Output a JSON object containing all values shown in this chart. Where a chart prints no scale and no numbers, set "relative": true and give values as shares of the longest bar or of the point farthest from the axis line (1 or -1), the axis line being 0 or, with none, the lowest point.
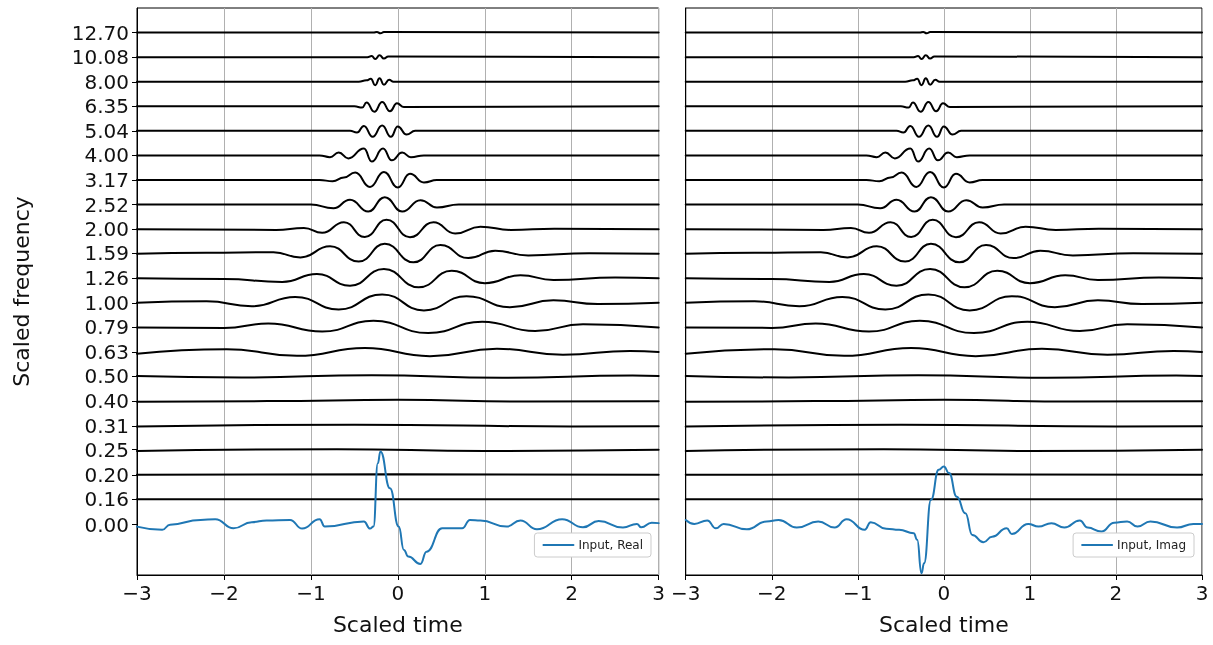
{
  "chart_data": [
    {
      "type": "line",
      "relative": true,
      "xlabel": "Scaled time",
      "ylabel": "Scaled frequency",
      "xlim": [
        -3,
        3
      ],
      "xticks": [
        {
          "value": -3,
          "label": "−3"
        },
        {
          "value": -2,
          "label": "−2"
        },
        {
          "value": -1,
          "label": "−1"
        },
        0,
        1,
        2,
        3
      ],
      "y_categories": [
        "12.70",
        "10.08",
        "8.00",
        "6.35",
        "5.04",
        "4.00",
        "3.17",
        "2.52",
        "2.00",
        "1.59",
        "1.26",
        "1.00",
        "0.79",
        "0.63",
        "0.50",
        "0.40",
        "0.31",
        "0.25",
        "0.20",
        "0.16",
        "0.00"
      ],
      "grid": "x",
      "legend": "bottom right",
      "series": [
        {
          "name": "Input, Real",
          "color": "#1f77b4",
          "x": [
            -3,
            -2.71,
            -2.62,
            -2.27,
            -2.1,
            -1.89,
            -1.68,
            -1.51,
            -1.24,
            -1.1,
            -0.9,
            -0.84,
            -0.39,
            -0.32,
            -0.28,
            -0.23,
            -0.2,
            -0.09,
            0.01,
            0.07,
            0.12,
            0.26,
            0.33,
            0.51,
            0.74,
            0.83,
            0.95,
            1.25,
            1.41,
            1.6,
            1.89,
            2.13,
            2.31,
            2.59,
            2.75,
            2.8,
            2.92,
            3
          ],
          "values": [
            0.0891,
            0.0832,
            0.0927,
            0.1013,
            0.1027,
            0.086,
            0.0973,
            0.1004,
            0.1013,
            0.0855,
            0.1027,
            0.0891,
            0.0986,
            0.0855,
            0.0891,
            0.2058,
            0.2275,
            0.1597,
            0.0891,
            0.0462,
            0.0339,
            0.0204,
            0.043,
            0.086,
            0.086,
            0.1013,
            0.1004,
            0.0891,
            0.1004,
            0.0841,
            0.1027,
            0.0878,
            0.0995,
            0.0873,
            0.0941,
            0.0878,
            0.0964,
            0.0955
          ]
        },
        {
          "color": "#000000",
          "x": [
            -3,
            3
          ],
          "values": [
            0.1393,
            0.1393
          ]
        },
        {
          "color": "#000000",
          "x": [
            -3,
            0,
            3
          ],
          "values": [
            0.1845,
            0.1854,
            0.1845
          ]
        },
        {
          "color": "#000000",
          "x": [
            -3,
            -0.7,
            1,
            3
          ],
          "values": [
            0.2284,
            0.2316,
            0.2284,
            0.2307
          ]
        },
        {
          "color": "#000000",
          "x": [
            -3,
            -0.5,
            2,
            3
          ],
          "values": [
            0.2732,
            0.2768,
            0.2736,
            0.2741
          ]
        },
        {
          "color": "#000000",
          "x": [
            -3,
            -1.5,
            0,
            1.5,
            3
          ],
          "values": [
            0.3188,
            0.3202,
            0.3225,
            0.3193,
            0.3197
          ]
        },
        {
          "color": "#000000",
          "x": [
            -3,
            -1.8,
            -0.3,
            1.2,
            2.7,
            3
          ],
          "values": [
            0.3664,
            0.3637,
            0.3678,
            0.3632,
            0.3673,
            0.3664
          ]
        },
        {
          "color": "#000000",
          "x": [
            -3,
            -1.97,
            -1.16,
            -0.38,
            0.37,
            1.14,
            1.9,
            2.67,
            3
          ],
          "values": [
            0.4075,
            0.4157,
            0.4035,
            0.4179,
            0.403,
            0.4166,
            0.4057,
            0.4125,
            0.4107
          ]
        },
        {
          "color": "#000000",
          "x": [
            -3,
            -2,
            -1.49,
            -0.87,
            -0.28,
            0.35,
            0.97,
            1.58,
            2.13,
            3
          ],
          "values": [
            0.4559,
            0.455,
            0.4631,
            0.4482,
            0.4681,
            0.4455,
            0.4663,
            0.4491,
            0.4618,
            0.4559
          ]
        },
        {
          "color": "#000000",
          "x": [
            -3,
            -2.2,
            -1.68,
            -1.18,
            -0.68,
            -0.18,
            0.3,
            0.79,
            1.29,
            1.79,
            2.3,
            3
          ],
          "values": [
            0.5012,
            0.5039,
            0.4949,
            0.5121,
            0.489,
            0.5166,
            0.4872,
            0.5134,
            0.4931,
            0.5057,
            0.4989,
            0.5012
          ]
        },
        {
          "color": "#000000",
          "x": [
            -3,
            -2,
            -1.33,
            -0.93,
            -0.55,
            -0.16,
            0.24,
            0.62,
            1,
            1.41,
            1.79,
            2.5,
            3
          ],
          "values": [
            0.5464,
            0.545,
            0.5396,
            0.5541,
            0.5328,
            0.5636,
            0.5297,
            0.56,
            0.5374,
            0.5518,
            0.5432,
            0.5478,
            0.5464
          ]
        },
        {
          "color": "#000000",
          "x": [
            -3,
            -2.2,
            -1.43,
            -1.12,
            -0.78,
            -0.45,
            -0.15,
            0.18,
            0.49,
            0.81,
            1.12,
            1.5,
            2.2,
            3
          ],
          "values": [
            0.5916,
            0.5934,
            0.5943,
            0.5848,
            0.6052,
            0.5771,
            0.6097,
            0.5758,
            0.6074,
            0.5835,
            0.597,
            0.5884,
            0.5925,
            0.5916
          ]
        },
        {
          "color": "#000000",
          "x": [
            -3,
            -1.4,
            -1.08,
            -0.87,
            -0.62,
            -0.38,
            -0.13,
            0.14,
            0.41,
            0.66,
            0.95,
            1.3,
            1.8,
            3
          ],
          "values": [
            0.6368,
            0.6354,
            0.6391,
            0.63,
            0.6495,
            0.6223,
            0.654,
            0.6219,
            0.6495,
            0.6287,
            0.6413,
            0.6354,
            0.6377,
            0.6368
          ]
        },
        {
          "color": "#000000",
          "x": [
            -3,
            -1,
            -0.74,
            -0.55,
            -0.34,
            -0.15,
            0.05,
            0.26,
            0.45,
            0.7,
            3
          ],
          "values": [
            0.6821,
            0.6821,
            0.6753,
            0.6911,
            0.6694,
            0.6957,
            0.6694,
            0.6902,
            0.6767,
            0.6821,
            0.6821
          ]
        },
        {
          "color": "#000000",
          "x": [
            -3,
            -0.9,
            -0.75,
            -0.62,
            -0.49,
            -0.32,
            -0.16,
            0,
            0.14,
            0.3,
            0.45,
            3
          ],
          "values": [
            0.7273,
            0.7273,
            0.725,
            0.7318,
            0.7409,
            0.7146,
            0.7422,
            0.7137,
            0.7386,
            0.7228,
            0.7273,
            0.7273
          ]
        },
        {
          "color": "#000000",
          "x": [
            -3,
            -0.9,
            -0.78,
            -0.68,
            -0.57,
            -0.39,
            -0.3,
            -0.17,
            -0.07,
            0.05,
            0.15,
            0.3,
            3
          ],
          "values": [
            0.7725,
            0.7725,
            0.7693,
            0.7779,
            0.7671,
            0.7852,
            0.7612,
            0.7852,
            0.7635,
            0.7779,
            0.7693,
            0.7725,
            0.7725
          ]
        },
        {
          "color": "#000000",
          "x": [
            -3,
            -0.55,
            -0.47,
            -0.39,
            -0.29,
            -0.18,
            -0.08,
            0,
            0.1,
            0.2,
            3
          ],
          "values": [
            0.8178,
            0.8178,
            0.8146,
            0.8268,
            0.8069,
            0.8278,
            0.8069,
            0.8259,
            0.811,
            0.8178,
            0.8178
          ]
        },
        {
          "color": "#000000",
          "x": [
            -3,
            -0.5,
            -0.41,
            -0.36,
            -0.27,
            -0.18,
            -0.09,
            -0.01,
            0.07,
            3
          ],
          "values": [
            0.863,
            0.863,
            0.8607,
            0.8698,
            0.853,
            0.8711,
            0.854,
            0.8684,
            0.8616,
            0.863
          ]
        },
        {
          "color": "#000000",
          "x": [
            -3,
            -1,
            -0.45,
            -0.36,
            -0.31,
            -0.26,
            -0.21,
            -0.16,
            -0.1,
            -0.05,
            3
          ],
          "values": [
            0.9082,
            0.9082,
            0.9082,
            0.9109,
            0.9136,
            0.9019,
            0.9145,
            0.9028,
            0.9118,
            0.9082,
            0.9082
          ]
        },
        {
          "color": "#000000",
          "x": [
            -3,
            -0.35,
            -0.3,
            -0.26,
            -0.21,
            -0.16,
            -0.11,
            3
          ],
          "values": [
            0.9535,
            0.9535,
            0.9558,
            0.9499,
            0.9571,
            0.9508,
            0.9549,
            0.9535
          ]
        },
        {
          "color": "#000000",
          "x": [
            -3,
            -0.28,
            -0.24,
            -0.2,
            -0.16,
            3
          ],
          "values": [
            0.9987,
            0.9987,
            1.0,
            0.9973,
            0.9996,
            0.9987
          ]
        }
      ]
    },
    {
      "type": "line",
      "relative": true,
      "xlabel": "Scaled time",
      "xlim": [
        -3,
        3
      ],
      "xticks": [
        {
          "value": -3,
          "label": "−3"
        },
        {
          "value": -2,
          "label": "−2"
        },
        {
          "value": -1,
          "label": "−1"
        },
        0,
        1,
        2,
        3
      ],
      "grid": "x",
      "legend": "bottom right",
      "tick_labels": "x",
      "series": [
        {
          "name": "Input, Imag",
          "color": "#1f77b4",
          "x": [
            -3,
            -2.9,
            -2.75,
            -2.65,
            -2.56,
            -2.29,
            -2.06,
            -1.92,
            -1.71,
            -1.46,
            -1.27,
            -1.13,
            -0.92,
            -0.85,
            -0.67,
            -0.52,
            -0.35,
            -0.31,
            -0.26,
            -0.23,
            -0.15,
            -0.06,
            0,
            0.06,
            0.15,
            0.25,
            0.33,
            0.46,
            0.56,
            0.73,
            0.79,
            0.98,
            1.1,
            1.25,
            1.4,
            1.58,
            1.67,
            1.83,
            1.98,
            2.13,
            2.25,
            2.4,
            2.71,
            2.9,
            3
          ],
          "values": [
            0.1013,
            0.0941,
            0.1004,
            0.086,
            0.0941,
            0.0841,
            0.0986,
            0.1013,
            0.0873,
            0.0986,
            0.0873,
            0.1027,
            0.0832,
            0.0973,
            0.0851,
            0.0832,
            0.0769,
            0.0647,
            0.0032,
            0.0217,
            0.1384,
            0.1936,
            0.1999,
            0.1877,
            0.1443,
            0.1135,
            0.0737,
            0.0602,
            0.0706,
            0.086,
            0.0756,
            0.0941,
            0.0891,
            0.0955,
            0.0873,
            0.1004,
            0.0873,
            0.0801,
            0.0964,
            0.0986,
            0.0891,
            0.0986,
            0.0873,
            0.0941,
            0.0941
          ]
        },
        {
          "color": "#000000",
          "x": [
            -3,
            3
          ],
          "values": [
            0.1393,
            0.1393
          ]
        },
        {
          "color": "#000000",
          "x": [
            -3,
            0,
            3
          ],
          "values": [
            0.1845,
            0.1854,
            0.1845
          ]
        },
        {
          "color": "#000000",
          "x": [
            -3,
            -0.7,
            1,
            3
          ],
          "values": [
            0.2284,
            0.2316,
            0.2284,
            0.2307
          ]
        },
        {
          "color": "#000000",
          "x": [
            -3,
            -0.5,
            2,
            3
          ],
          "values": [
            0.2732,
            0.2768,
            0.2736,
            0.2741
          ]
        },
        {
          "color": "#000000",
          "x": [
            -3,
            -1.5,
            0,
            1.5,
            3
          ],
          "values": [
            0.3188,
            0.3202,
            0.3225,
            0.3193,
            0.3197
          ]
        },
        {
          "color": "#000000",
          "x": [
            -3,
            -1.8,
            -0.3,
            1.2,
            2.7,
            3
          ],
          "values": [
            0.3664,
            0.3637,
            0.3678,
            0.3632,
            0.3673,
            0.3664
          ]
        },
        {
          "color": "#000000",
          "x": [
            -3,
            -1.97,
            -1.16,
            -0.38,
            0.37,
            1.14,
            1.9,
            2.67,
            3
          ],
          "values": [
            0.4075,
            0.4157,
            0.4035,
            0.4179,
            0.403,
            0.4166,
            0.4057,
            0.4125,
            0.4107
          ]
        },
        {
          "color": "#000000",
          "x": [
            -3,
            -2,
            -1.49,
            -0.87,
            -0.28,
            0.35,
            0.97,
            1.58,
            2.13,
            3
          ],
          "values": [
            0.4559,
            0.455,
            0.4631,
            0.4482,
            0.4681,
            0.4455,
            0.4663,
            0.4491,
            0.4618,
            0.4559
          ]
        },
        {
          "color": "#000000",
          "x": [
            -3,
            -2.2,
            -1.68,
            -1.18,
            -0.68,
            -0.18,
            0.3,
            0.79,
            1.29,
            1.79,
            2.3,
            3
          ],
          "values": [
            0.5012,
            0.5039,
            0.4949,
            0.5121,
            0.489,
            0.5166,
            0.4872,
            0.5134,
            0.4931,
            0.5057,
            0.4989,
            0.5012
          ]
        },
        {
          "color": "#000000",
          "x": [
            -3,
            -2,
            -1.33,
            -0.93,
            -0.55,
            -0.16,
            0.24,
            0.62,
            1,
            1.41,
            1.79,
            2.5,
            3
          ],
          "values": [
            0.5464,
            0.545,
            0.5396,
            0.5541,
            0.5328,
            0.5636,
            0.5297,
            0.56,
            0.5374,
            0.5518,
            0.5432,
            0.5478,
            0.5464
          ]
        },
        {
          "color": "#000000",
          "x": [
            -3,
            -2.2,
            -1.43,
            -1.12,
            -0.78,
            -0.45,
            -0.15,
            0.18,
            0.49,
            0.81,
            1.12,
            1.5,
            2.2,
            3
          ],
          "values": [
            0.5916,
            0.5934,
            0.5943,
            0.5848,
            0.6052,
            0.5771,
            0.6097,
            0.5758,
            0.6074,
            0.5835,
            0.597,
            0.5884,
            0.5925,
            0.5916
          ]
        },
        {
          "color": "#000000",
          "x": [
            -3,
            -1.4,
            -1.08,
            -0.87,
            -0.62,
            -0.38,
            -0.13,
            0.14,
            0.41,
            0.66,
            0.95,
            1.3,
            1.8,
            3
          ],
          "values": [
            0.6368,
            0.6354,
            0.6391,
            0.63,
            0.6495,
            0.6223,
            0.654,
            0.6219,
            0.6495,
            0.6287,
            0.6413,
            0.6354,
            0.6377,
            0.6368
          ]
        },
        {
          "color": "#000000",
          "x": [
            -3,
            -1,
            -0.74,
            -0.55,
            -0.34,
            -0.15,
            0.05,
            0.26,
            0.45,
            0.7,
            3
          ],
          "values": [
            0.6821,
            0.6821,
            0.6753,
            0.6911,
            0.6694,
            0.6957,
            0.6694,
            0.6902,
            0.6767,
            0.6821,
            0.6821
          ]
        },
        {
          "color": "#000000",
          "x": [
            -3,
            -0.9,
            -0.75,
            -0.62,
            -0.49,
            -0.32,
            -0.16,
            0,
            0.14,
            0.3,
            0.45,
            3
          ],
          "values": [
            0.7273,
            0.7273,
            0.725,
            0.7318,
            0.7409,
            0.7146,
            0.7422,
            0.7137,
            0.7386,
            0.7228,
            0.7273,
            0.7273
          ]
        },
        {
          "color": "#000000",
          "x": [
            -3,
            -0.9,
            -0.78,
            -0.68,
            -0.57,
            -0.39,
            -0.3,
            -0.17,
            -0.07,
            0.05,
            0.15,
            0.3,
            3
          ],
          "values": [
            0.7725,
            0.7725,
            0.7693,
            0.7779,
            0.7671,
            0.7852,
            0.7612,
            0.7852,
            0.7635,
            0.7779,
            0.7693,
            0.7725,
            0.7725
          ]
        },
        {
          "color": "#000000",
          "x": [
            -3,
            -0.55,
            -0.47,
            -0.39,
            -0.29,
            -0.18,
            -0.08,
            0,
            0.1,
            0.2,
            3
          ],
          "values": [
            0.8178,
            0.8178,
            0.8146,
            0.8268,
            0.8069,
            0.8278,
            0.8069,
            0.8259,
            0.811,
            0.8178,
            0.8178
          ]
        },
        {
          "color": "#000000",
          "x": [
            -3,
            -0.5,
            -0.41,
            -0.36,
            -0.27,
            -0.18,
            -0.09,
            -0.01,
            0.07,
            3
          ],
          "values": [
            0.863,
            0.863,
            0.8607,
            0.8698,
            0.853,
            0.8711,
            0.854,
            0.8684,
            0.8616,
            0.863
          ]
        },
        {
          "color": "#000000",
          "x": [
            -3,
            -1,
            -0.45,
            -0.36,
            -0.31,
            -0.26,
            -0.21,
            -0.16,
            -0.1,
            -0.05,
            3
          ],
          "values": [
            0.9082,
            0.9082,
            0.9082,
            0.9109,
            0.9136,
            0.9019,
            0.9145,
            0.9028,
            0.9118,
            0.9082,
            0.9082
          ]
        },
        {
          "color": "#000000",
          "x": [
            -3,
            -0.35,
            -0.3,
            -0.26,
            -0.21,
            -0.16,
            -0.11,
            3
          ],
          "values": [
            0.9535,
            0.9535,
            0.9558,
            0.9499,
            0.9571,
            0.9508,
            0.9549,
            0.9535
          ]
        },
        {
          "color": "#000000",
          "x": [
            -3,
            -0.28,
            -0.24,
            -0.2,
            -0.16,
            3
          ],
          "values": [
            0.9987,
            0.9987,
            1.0,
            0.9973,
            0.9996,
            0.9987
          ]
        }
      ]
    }
  ]
}
